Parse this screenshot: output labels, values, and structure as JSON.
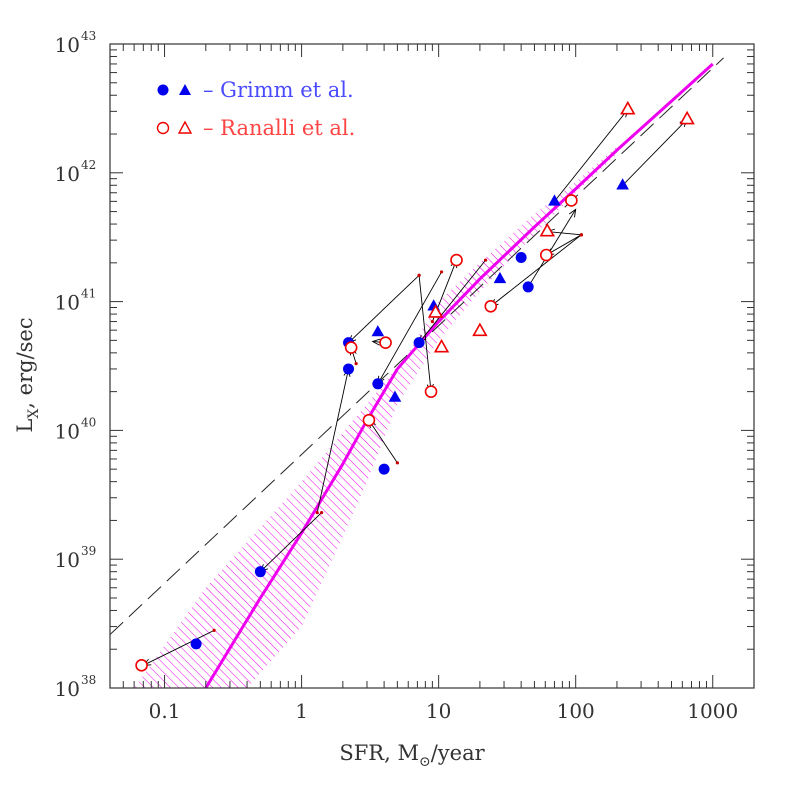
{
  "chart_data": {
    "type": "scatter",
    "xscale": "log",
    "yscale": "log",
    "xlim": [
      0.04,
      2000
    ],
    "ylim": [
      1e+38,
      1e+43
    ],
    "xlabel": {
      "main": "SFR, M",
      "sub": "⊙",
      "rest": "/year"
    },
    "ylabel": {
      "main": "L",
      "sub": "X",
      "rest": ", erg/sec"
    },
    "x_ticks": [
      {
        "value": 0.1,
        "label": "0.1"
      },
      {
        "value": 1,
        "label": "1"
      },
      {
        "value": 10,
        "label": "10"
      },
      {
        "value": 100,
        "label": "100"
      },
      {
        "value": 1000,
        "label": "1000"
      }
    ],
    "y_ticks": [
      {
        "value": 1e+38,
        "base": "10",
        "exp": "38"
      },
      {
        "value": 1e+39,
        "base": "10",
        "exp": "39"
      },
      {
        "value": 1e+40,
        "base": "10",
        "exp": "40"
      },
      {
        "value": 1e+41,
        "base": "10",
        "exp": "41"
      },
      {
        "value": 1e+42,
        "base": "10",
        "exp": "42"
      },
      {
        "value": 1e+43,
        "base": "10",
        "exp": "43"
      }
    ],
    "legend": [
      {
        "markers": [
          "filled-circle",
          "filled-triangle"
        ],
        "text": "– Grimm et al.",
        "color": "#4a4aff"
      },
      {
        "markers": [
          "open-circle",
          "open-triangle"
        ],
        "text": "– Ranalli et al.",
        "color": "#ff4444"
      }
    ],
    "colors": {
      "grimm": "#0000ee",
      "ranalli": "#ee0000",
      "model": "#ee00ee",
      "arrow": "#000000",
      "frame": "#333333"
    },
    "series": [
      {
        "name": "Grimm et al.",
        "points": [
          {
            "x": 0.17,
            "y": 2.2e+38,
            "marker": "circle"
          },
          {
            "x": 0.5,
            "y": 8e+38,
            "marker": "circle"
          },
          {
            "x": 2.2,
            "y": 4.8e+40,
            "marker": "circle"
          },
          {
            "x": 2.2,
            "y": 3e+40,
            "marker": "circle"
          },
          {
            "x": 3.6,
            "y": 2.3e+40,
            "marker": "circle"
          },
          {
            "x": 4.0,
            "y": 5e+39,
            "marker": "circle"
          },
          {
            "x": 7.2,
            "y": 4.8e+40,
            "marker": "circle"
          },
          {
            "x": 40,
            "y": 2.2e+41,
            "marker": "circle"
          },
          {
            "x": 45,
            "y": 1.3e+41,
            "marker": "circle"
          },
          {
            "x": 3.6,
            "y": 5.8e+40,
            "marker": "triangle"
          },
          {
            "x": 4.8,
            "y": 1.8e+40,
            "marker": "triangle"
          },
          {
            "x": 9.2,
            "y": 9.2e+40,
            "marker": "triangle"
          },
          {
            "x": 28,
            "y": 1.5e+41,
            "marker": "triangle"
          },
          {
            "x": 70,
            "y": 6e+41,
            "marker": "triangle"
          },
          {
            "x": 220,
            "y": 8e+41,
            "marker": "triangle"
          }
        ]
      },
      {
        "name": "Ranalli et al.",
        "points": [
          {
            "x": 0.068,
            "y": 1.5e+38,
            "marker": "circle"
          },
          {
            "x": 2.3,
            "y": 4.4e+40,
            "marker": "circle"
          },
          {
            "x": 4.1,
            "y": 4.8e+40,
            "marker": "circle"
          },
          {
            "x": 3.1,
            "y": 1.2e+40,
            "marker": "circle"
          },
          {
            "x": 8.8,
            "y": 2e+40,
            "marker": "circle"
          },
          {
            "x": 13.5,
            "y": 2.1e+41,
            "marker": "circle"
          },
          {
            "x": 24,
            "y": 9.2e+40,
            "marker": "circle"
          },
          {
            "x": 61,
            "y": 2.3e+41,
            "marker": "circle"
          },
          {
            "x": 93,
            "y": 6.1e+41,
            "marker": "circle"
          },
          {
            "x": 9.5,
            "y": 8.2e+40,
            "marker": "triangle"
          },
          {
            "x": 10.5,
            "y": 4.4e+40,
            "marker": "triangle"
          },
          {
            "x": 20,
            "y": 5.9e+40,
            "marker": "triangle"
          },
          {
            "x": 62,
            "y": 3.5e+41,
            "marker": "triangle"
          },
          {
            "x": 240,
            "y": 3.1e+42,
            "marker": "triangle"
          },
          {
            "x": 650,
            "y": 2.6e+42,
            "marker": "triangle"
          }
        ]
      }
    ],
    "arrows": [
      {
        "from": [
          0.23,
          2.8e+38
        ],
        "to": [
          0.07,
          1.5e+38
        ]
      },
      {
        "from": [
          1.4,
          2.3e+39
        ],
        "to": [
          0.5,
          8e+38
        ]
      },
      {
        "from": [
          1.3,
          2.3e+39
        ],
        "to": [
          2.2,
          3e+40
        ]
      },
      {
        "from": [
          7.2,
          1.6e+41
        ],
        "to": [
          2.2,
          4.8e+40
        ]
      },
      {
        "from": [
          7.2,
          1.6e+41
        ],
        "to": [
          8.8,
          2e+40
        ]
      },
      {
        "from": [
          10.5,
          1.7e+41
        ],
        "to": [
          3.6,
          2.3e+40
        ]
      },
      {
        "from": [
          22,
          2.1e+41
        ],
        "to": [
          7.2,
          4.8e+40
        ]
      },
      {
        "from": [
          5.0,
          5.6e+39
        ],
        "to": [
          3.1,
          1.2e+40
        ]
      },
      {
        "from": [
          9.0,
          7e+40
        ],
        "to": [
          13.5,
          2.1e+41
        ]
      },
      {
        "from": [
          4.1,
          4.8e+40
        ],
        "to": [
          3.3,
          4.9e+40
        ]
      },
      {
        "from": [
          2.5,
          3.3e+40
        ],
        "to": [
          2.3,
          4.4e+40
        ]
      },
      {
        "from": [
          110,
          3.3e+41
        ],
        "to": [
          62,
          3.5e+41
        ]
      },
      {
        "from": [
          110,
          3.3e+41
        ],
        "to": [
          61,
          2.3e+41
        ]
      },
      {
        "from": [
          110,
          3.3e+41
        ],
        "to": [
          24,
          9.2e+40
        ]
      },
      {
        "from": [
          70,
          6e+41
        ],
        "to": [
          240,
          3.1e+42
        ]
      },
      {
        "from": [
          220,
          8e+41
        ],
        "to": [
          650,
          2.6e+42
        ]
      },
      {
        "from": [
          45,
          1.3e+41
        ],
        "to": [
          100,
          5.2e+41
        ]
      }
    ],
    "model_curve": [
      [
        0.2,
        1e+38
      ],
      [
        0.5,
        5e+38
      ],
      [
        1,
        1.6e+39
      ],
      [
        2,
        5.5e+39
      ],
      [
        3,
        1.2e+40
      ],
      [
        5,
        3e+40
      ],
      [
        10,
        7e+40
      ],
      [
        20,
        1.5e+41
      ],
      [
        50,
        3.8e+41
      ],
      [
        100,
        7.5e+41
      ],
      [
        200,
        1.5e+42
      ],
      [
        500,
        3.6e+42
      ],
      [
        1000,
        7e+42
      ]
    ],
    "model_band_upper": [
      [
        0.06,
        1e+38
      ],
      [
        0.2,
        6e+38
      ],
      [
        1,
        4e+39
      ],
      [
        3,
        1.6e+40
      ],
      [
        6,
        4e+40
      ],
      [
        10,
        1e+41
      ],
      [
        20,
        2e+41
      ],
      [
        50,
        4.8e+41
      ],
      [
        100,
        8.5e+41
      ],
      [
        200,
        1.6e+42
      ]
    ],
    "model_band_lower": [
      [
        0.4,
        1e+38
      ],
      [
        1,
        3e+38
      ],
      [
        2,
        1.5e+39
      ],
      [
        3,
        4e+39
      ],
      [
        5,
        1.6e+40
      ],
      [
        10,
        5e+40
      ],
      [
        20,
        1.2e+41
      ],
      [
        50,
        3.3e+41
      ],
      [
        100,
        7e+41
      ],
      [
        200,
        1.4e+42
      ]
    ],
    "linear_relation": [
      [
        0.04,
        2.6e+38
      ],
      [
        1200,
        7.8e+42
      ]
    ]
  }
}
